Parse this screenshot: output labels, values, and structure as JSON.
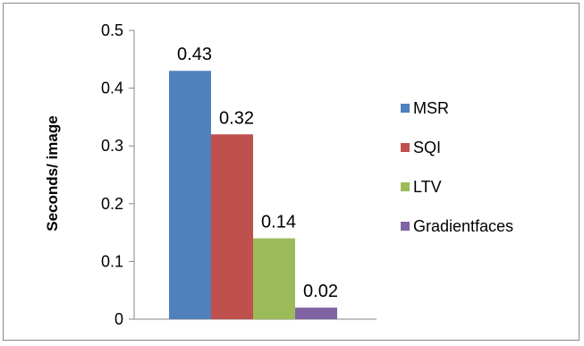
{
  "chart_data": {
    "type": "bar",
    "title": "",
    "xlabel": "",
    "ylabel": "Seconds/ image",
    "ylim": [
      0,
      0.5
    ],
    "yticks": [
      "0",
      "0.1",
      "0.2",
      "0.3",
      "0.4",
      "0.5"
    ],
    "categories": [
      ""
    ],
    "series": [
      {
        "name": "MSR",
        "values": [
          0.43
        ],
        "label": "0.43",
        "color": "#4f81bd"
      },
      {
        "name": "SQI",
        "values": [
          0.32
        ],
        "label": "0.32",
        "color": "#c0504d"
      },
      {
        "name": "LTV",
        "values": [
          0.14
        ],
        "label": "0.14",
        "color": "#9bbb59"
      },
      {
        "name": "Gradientfaces",
        "values": [
          0.02
        ],
        "label": "0.02",
        "color": "#8064a2"
      }
    ],
    "legend_position": "right",
    "grid": false
  }
}
